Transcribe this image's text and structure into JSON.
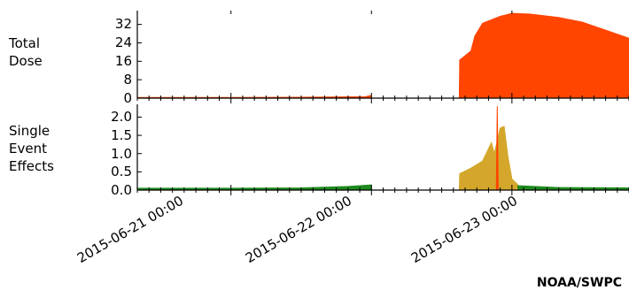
{
  "credit": "NOAA/SWPC",
  "colors": {
    "dose_fill": "#FF4500",
    "see_green": "#1E8A1E",
    "see_gold": "#D4A72C",
    "see_peak": "#FF4500",
    "axis": "#000000"
  },
  "chart_data": [
    {
      "type": "area",
      "panel": "top",
      "label_lines": [
        "Total",
        "Dose"
      ],
      "x_tick_labels": [
        "2015-06-21 00:00",
        "2015-06-22 00:00",
        "2015-06-23 00:00"
      ],
      "x_start": "2015-06-20 08:00",
      "x_end": "2015-06-23 20:00",
      "y_ticks": [
        "0",
        "8",
        "16",
        "24",
        "32"
      ],
      "ylim": [
        0,
        38
      ],
      "series": [
        {
          "color": "#FF4500",
          "points": [
            [
              "2015-06-20 08:00",
              0.3
            ],
            [
              "2015-06-21 00:00",
              0.3
            ],
            [
              "2015-06-21 12:00",
              0.4
            ],
            [
              "2015-06-21 23:00",
              0.6
            ],
            [
              "2015-06-21 23:59",
              1.2
            ],
            [
              "2015-06-22 00:00",
              0.0
            ],
            [
              "2015-06-22 15:00",
              0.0
            ],
            [
              "2015-06-22 15:05",
              16.5
            ],
            [
              "2015-06-22 17:00",
              20.5
            ],
            [
              "2015-06-22 17:40",
              27.0
            ],
            [
              "2015-06-22 19:00",
              32.5
            ],
            [
              "2015-06-22 22:00",
              35.5
            ],
            [
              "2015-06-23 00:00",
              36.8
            ],
            [
              "2015-06-23 03:00",
              36.5
            ],
            [
              "2015-06-23 08:00",
              35.0
            ],
            [
              "2015-06-23 12:00",
              33.0
            ],
            [
              "2015-06-23 16:00",
              29.5
            ],
            [
              "2015-06-23 20:00",
              26.0
            ]
          ]
        }
      ]
    },
    {
      "type": "area",
      "panel": "bottom",
      "label_lines": [
        "Single",
        "Event",
        "Effects"
      ],
      "y_ticks": [
        "0.0",
        "0.5",
        "1.0",
        "1.5",
        "2.0"
      ],
      "ylim": [
        0,
        2.35
      ],
      "series": [
        {
          "color": "#1E8A1E",
          "points": [
            [
              "2015-06-20 08:00",
              0.05
            ],
            [
              "2015-06-21 00:00",
              0.05
            ],
            [
              "2015-06-21 12:00",
              0.06
            ],
            [
              "2015-06-21 20:00",
              0.1
            ],
            [
              "2015-06-21 23:59",
              0.14
            ],
            [
              "2015-06-22 00:00",
              0.0
            ],
            [
              "2015-06-22 15:00",
              0.0
            ]
          ]
        },
        {
          "color": "#D4A72C",
          "points": [
            [
              "2015-06-22 15:00",
              0.0
            ],
            [
              "2015-06-22 15:05",
              0.45
            ],
            [
              "2015-06-22 17:00",
              0.6
            ],
            [
              "2015-06-22 19:00",
              0.8
            ],
            [
              "2015-06-22 20:30",
              1.3
            ],
            [
              "2015-06-22 21:00",
              1.0
            ],
            [
              "2015-06-22 22:00",
              1.7
            ],
            [
              "2015-06-22 22:40",
              1.75
            ],
            [
              "2015-06-22 23:20",
              0.9
            ],
            [
              "2015-06-23 00:00",
              0.3
            ],
            [
              "2015-06-23 01:00",
              0.15
            ]
          ]
        },
        {
          "color": "#1E8A1E",
          "points": [
            [
              "2015-06-23 01:00",
              0.12
            ],
            [
              "2015-06-23 08:00",
              0.07
            ],
            [
              "2015-06-23 20:00",
              0.06
            ]
          ]
        },
        {
          "color": "#FF4500",
          "points": [
            [
              "2015-06-22 21:20",
              0.0
            ],
            [
              "2015-06-22 21:30",
              2.3
            ],
            [
              "2015-06-22 21:40",
              0.0
            ]
          ]
        }
      ]
    }
  ]
}
